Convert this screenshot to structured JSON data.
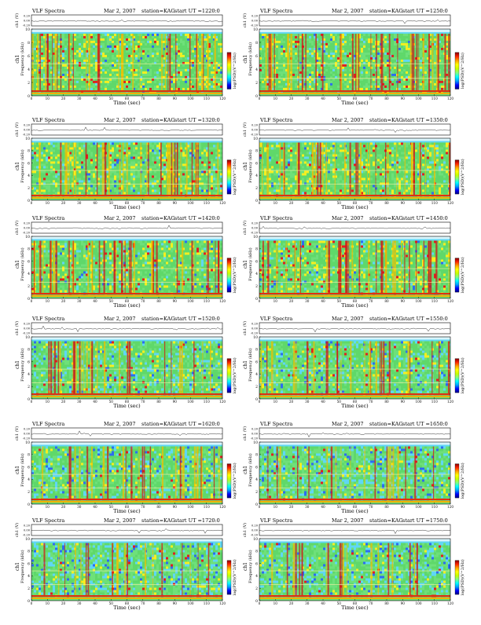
{
  "header": {
    "title": "VLF Spectra",
    "date": "Mar 2, 2007",
    "station": "station=KAG",
    "start_prefix": "start UT ="
  },
  "axes": {
    "time_label": "Time (sec)",
    "freq_label": "Frequency (kHz)",
    "ch_label": "ch1",
    "voltage_label": "ch1 (V)",
    "colorbar_label": "log(PSD)(V^2/Hz)",
    "x_ticks": [
      "0",
      "10",
      "20",
      "30",
      "40",
      "50",
      "60",
      "70",
      "80",
      "90",
      "100",
      "110",
      "120"
    ],
    "y_ticks": [
      "0",
      "2",
      "4",
      "6",
      "8",
      "10"
    ],
    "v_ticks": [
      "-0.20",
      "0.00",
      "0.20"
    ]
  },
  "colors": {
    "spectrogram_scale": [
      "#000080",
      "#0000ff",
      "#00a0ff",
      "#00ffff",
      "#80ff80",
      "#c8ff00",
      "#ffff00",
      "#ffa000",
      "#ff2000",
      "#800000"
    ],
    "background_cyan": "#5fd7f5",
    "noise_blue": "#2c6cf0"
  },
  "chart_data": [
    {
      "type": "heatmap",
      "panel": "1220",
      "start_ut": "1220:0",
      "xlim": [
        0,
        120
      ],
      "ylim": [
        0,
        10
      ],
      "activity": "high",
      "band_top_khz": 9.3
    },
    {
      "type": "heatmap",
      "panel": "1250",
      "start_ut": "1250:0",
      "xlim": [
        0,
        120
      ],
      "ylim": [
        0,
        10
      ],
      "activity": "high",
      "band_top_khz": 9.3
    },
    {
      "type": "heatmap",
      "panel": "1320",
      "start_ut": "1320:0",
      "xlim": [
        0,
        120
      ],
      "ylim": [
        0,
        10
      ],
      "activity": "high",
      "band_top_khz": 9.3
    },
    {
      "type": "heatmap",
      "panel": "1350",
      "start_ut": "1350:0",
      "xlim": [
        0,
        120
      ],
      "ylim": [
        0,
        10
      ],
      "activity": "high",
      "band_top_khz": 9.3
    },
    {
      "type": "heatmap",
      "panel": "1420",
      "start_ut": "1420:0",
      "xlim": [
        0,
        120
      ],
      "ylim": [
        0,
        10
      ],
      "activity": "high",
      "band_top_khz": 9.3
    },
    {
      "type": "heatmap",
      "panel": "1450",
      "start_ut": "1450:0",
      "xlim": [
        0,
        120
      ],
      "ylim": [
        0,
        10
      ],
      "activity": "high",
      "band_top_khz": 9.3
    },
    {
      "type": "heatmap",
      "panel": "1520",
      "start_ut": "1520:0",
      "xlim": [
        0,
        120
      ],
      "ylim": [
        0,
        10
      ],
      "activity": "medium",
      "band_top_khz": 9.3
    },
    {
      "type": "heatmap",
      "panel": "1550",
      "start_ut": "1550:0",
      "xlim": [
        0,
        120
      ],
      "ylim": [
        0,
        10
      ],
      "activity": "medium",
      "band_top_khz": 9.3
    },
    {
      "type": "heatmap",
      "panel": "1620",
      "start_ut": "1620:0",
      "xlim": [
        0,
        120
      ],
      "ylim": [
        0,
        10
      ],
      "activity": "medium",
      "band_top_khz": 9.3
    },
    {
      "type": "heatmap",
      "panel": "1650",
      "start_ut": "1650:0",
      "xlim": [
        0,
        120
      ],
      "ylim": [
        0,
        10
      ],
      "activity": "low",
      "band_top_khz": 9.3
    },
    {
      "type": "heatmap",
      "panel": "1720",
      "start_ut": "1720:0",
      "xlim": [
        0,
        120
      ],
      "ylim": [
        0,
        10
      ],
      "activity": "low",
      "band_top_khz": 9.3
    },
    {
      "type": "heatmap",
      "panel": "1750",
      "start_ut": "1750:0",
      "xlim": [
        0,
        120
      ],
      "ylim": [
        0,
        10
      ],
      "activity": "low",
      "band_top_khz": 9.3
    }
  ]
}
